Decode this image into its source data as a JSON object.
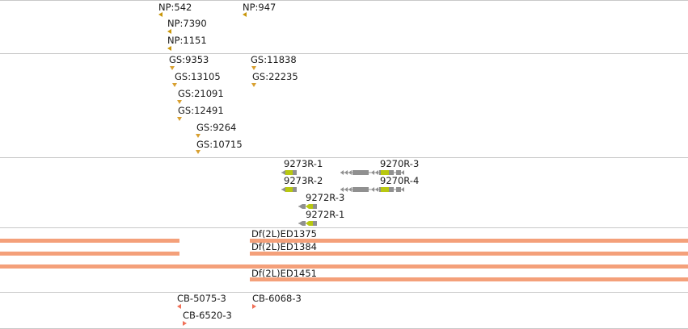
{
  "colors": {
    "np_marker": "#c8960a",
    "gs_marker": "#d8a030",
    "transcript_gray": "#909090",
    "transcript_exon": "#b8c810",
    "deficiency_bar": "#f4a07a",
    "cb_marker": "#f07058",
    "divider": "#c8c8c8"
  },
  "tracks": {
    "np": {
      "features": [
        {
          "label": "NP:542"
        },
        {
          "label": "NP:947"
        },
        {
          "label": "NP:7390"
        },
        {
          "label": "NP:1151"
        }
      ]
    },
    "gs": {
      "features": [
        {
          "label": "GS:9353"
        },
        {
          "label": "GS:11838"
        },
        {
          "label": "GS:13105"
        },
        {
          "label": "GS:22235"
        },
        {
          "label": "GS:21091"
        },
        {
          "label": "GS:12491"
        },
        {
          "label": "GS:9264"
        },
        {
          "label": "GS:10715"
        }
      ]
    },
    "transcripts": {
      "features": [
        {
          "label": "9273R-1"
        },
        {
          "label": "9270R-3"
        },
        {
          "label": "9273R-2"
        },
        {
          "label": "9270R-4"
        },
        {
          "label": "9272R-3"
        },
        {
          "label": "9272R-1"
        }
      ]
    },
    "deficiencies": {
      "features": [
        {
          "label": "Df(2L)ED1375"
        },
        {
          "label": "Df(2L)ED1384"
        },
        {
          "label": "Df(2L)ED1451"
        }
      ]
    },
    "cb": {
      "features": [
        {
          "label": "CB-5075-3"
        },
        {
          "label": "CB-6068-3"
        },
        {
          "label": "CB-6520-3"
        }
      ]
    }
  }
}
